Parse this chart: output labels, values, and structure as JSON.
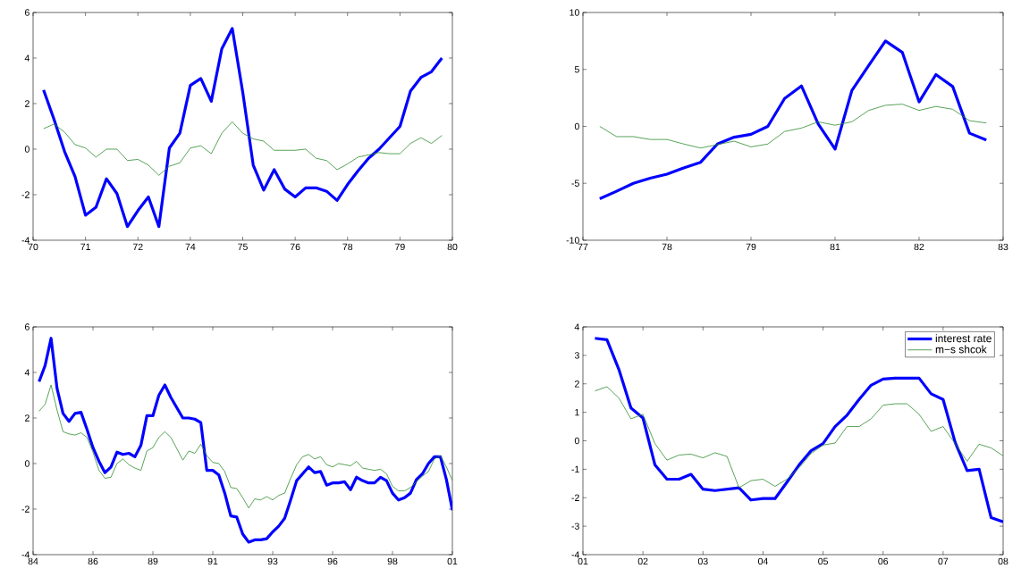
{
  "chart_data": [
    {
      "type": "line",
      "ylim": [
        -4,
        6
      ],
      "categories": [
        "70",
        null,
        null,
        null,
        null,
        "71",
        null,
        null,
        null,
        null,
        "72",
        null,
        null,
        null,
        null,
        "74",
        null,
        null,
        null,
        null,
        "75",
        null,
        null,
        null,
        null,
        "76",
        null,
        null,
        null,
        null,
        "78",
        null,
        null,
        null,
        null,
        "79",
        null,
        null,
        null,
        null,
        "80"
      ],
      "yticks": [
        -4,
        -2,
        0,
        2,
        4,
        6
      ],
      "grid": false,
      "legend": false,
      "marker": "none",
      "line_style": "solid",
      "series": [
        {
          "color": "#0000ff",
          "values": [
            null,
            2.6,
            1.3,
            -0.1,
            -1.2,
            -2.9,
            -2.55,
            -1.3,
            -1.95,
            -3.4,
            -2.7,
            -2.1,
            -3.4,
            0.05,
            0.7,
            2.8,
            3.1,
            2.1,
            4.4,
            5.3,
            2.5,
            -0.7,
            -1.8,
            -0.9,
            -1.75,
            -2.1,
            -1.7,
            -1.7,
            -1.85,
            -2.25,
            -1.55,
            -0.95,
            -0.4,
            0.0,
            0.5,
            1.0,
            2.55,
            3.15,
            3.4,
            4.0,
            null
          ]
        },
        {
          "color": "#2e8b2e",
          "values": [
            null,
            0.9,
            1.1,
            0.75,
            0.2,
            0.05,
            -0.35,
            0.0,
            0.0,
            -0.5,
            -0.45,
            -0.7,
            -1.15,
            -0.75,
            -0.6,
            0.05,
            0.15,
            -0.2,
            0.7,
            1.2,
            0.7,
            0.45,
            0.35,
            -0.05,
            -0.05,
            -0.05,
            0.0,
            -0.4,
            -0.5,
            -0.9,
            -0.65,
            -0.35,
            -0.25,
            -0.15,
            -0.2,
            -0.2,
            0.25,
            0.5,
            0.25,
            0.6,
            null
          ]
        }
      ]
    },
    {
      "type": "line",
      "ylim": [
        -10,
        10
      ],
      "categories": [
        "77",
        null,
        null,
        null,
        null,
        "78",
        null,
        null,
        null,
        null,
        "79",
        null,
        null,
        null,
        null,
        "81",
        null,
        null,
        null,
        null,
        "82",
        null,
        null,
        null,
        null,
        "83"
      ],
      "yticks": [
        -10,
        -5,
        0,
        5,
        10
      ],
      "grid": false,
      "legend": false,
      "marker": "none",
      "line_style": "solid",
      "series": [
        {
          "color": "#0000ff",
          "values": [
            null,
            -6.35,
            -5.7,
            -5.0,
            -4.55,
            -4.2,
            -3.65,
            -3.15,
            -1.55,
            -0.95,
            -0.7,
            0.0,
            2.45,
            3.55,
            0.2,
            -2.0,
            3.15,
            5.35,
            7.5,
            6.5,
            2.15,
            4.55,
            3.5,
            -0.6,
            -1.2,
            null
          ]
        },
        {
          "color": "#2e8b2e",
          "values": [
            null,
            0.0,
            -0.9,
            -0.9,
            -1.15,
            -1.15,
            -1.55,
            -1.9,
            -1.6,
            -1.3,
            -1.8,
            -1.55,
            -0.45,
            -0.15,
            0.4,
            0.1,
            0.4,
            1.4,
            1.85,
            1.95,
            1.4,
            1.75,
            1.5,
            0.5,
            0.3,
            null
          ]
        }
      ]
    },
    {
      "type": "line",
      "ylim": [
        -4,
        6
      ],
      "categories": [
        "84",
        null,
        null,
        null,
        null,
        null,
        null,
        null,
        null,
        null,
        "86",
        null,
        null,
        null,
        null,
        null,
        null,
        null,
        null,
        null,
        "89",
        null,
        null,
        null,
        null,
        null,
        null,
        null,
        null,
        null,
        "91",
        null,
        null,
        null,
        null,
        null,
        null,
        null,
        null,
        null,
        "93",
        null,
        null,
        null,
        null,
        null,
        null,
        null,
        null,
        null,
        "96",
        null,
        null,
        null,
        null,
        null,
        null,
        null,
        null,
        null,
        "98",
        null,
        null,
        null,
        null,
        null,
        null,
        null,
        null,
        null,
        "01"
      ],
      "yticks": [
        -4,
        -2,
        0,
        2,
        4,
        6
      ],
      "grid": false,
      "legend": false,
      "marker": "none",
      "line_style": "solid",
      "series": [
        {
          "color": "#0000ff",
          "values": [
            null,
            3.6,
            4.3,
            5.5,
            3.3,
            2.2,
            1.85,
            2.2,
            2.25,
            1.5,
            0.7,
            0.1,
            -0.4,
            -0.15,
            0.5,
            0.4,
            0.45,
            0.3,
            0.8,
            2.1,
            2.1,
            3.0,
            3.45,
            2.9,
            2.45,
            2.0,
            2.0,
            1.95,
            1.8,
            -0.3,
            -0.3,
            -0.5,
            -1.3,
            -2.3,
            -2.35,
            -3.1,
            -3.45,
            -3.35,
            -3.35,
            -3.3,
            -3.0,
            -2.75,
            -2.4,
            -1.6,
            -0.75,
            -0.45,
            -0.15,
            -0.4,
            -0.35,
            -0.95,
            -0.85,
            -0.85,
            -0.8,
            -1.15,
            -0.6,
            -0.75,
            -0.85,
            -0.85,
            -0.6,
            -0.75,
            -1.3,
            -1.6,
            -1.5,
            -1.3,
            -0.7,
            -0.45,
            0.0,
            0.3,
            0.3,
            -0.7,
            -2.05
          ]
        },
        {
          "color": "#2e8b2e",
          "values": [
            null,
            2.3,
            2.6,
            3.45,
            2.35,
            1.4,
            1.3,
            1.25,
            1.35,
            1.15,
            0.5,
            -0.3,
            -0.65,
            -0.6,
            0.0,
            0.2,
            -0.05,
            -0.2,
            -0.3,
            0.55,
            0.7,
            1.15,
            1.4,
            1.15,
            0.65,
            0.15,
            0.55,
            0.45,
            0.85,
            0.35,
            0.05,
            0.0,
            -0.35,
            -1.05,
            -1.1,
            -1.5,
            -1.95,
            -1.55,
            -1.6,
            -1.45,
            -1.6,
            -1.4,
            -1.3,
            -0.65,
            -0.05,
            0.3,
            0.4,
            0.2,
            0.3,
            -0.05,
            -0.15,
            0.0,
            -0.05,
            -0.1,
            0.1,
            -0.2,
            -0.25,
            -0.3,
            -0.25,
            -0.45,
            -1.0,
            -1.2,
            -1.2,
            -1.05,
            -0.8,
            -0.55,
            -0.35,
            0.2,
            0.35,
            -0.15,
            -0.75
          ]
        }
      ]
    },
    {
      "type": "line",
      "ylim": [
        -4,
        4
      ],
      "categories": [
        "01",
        null,
        null,
        null,
        null,
        "02",
        null,
        null,
        null,
        null,
        "03",
        null,
        null,
        null,
        null,
        "04",
        null,
        null,
        null,
        null,
        "05",
        null,
        null,
        null,
        null,
        "06",
        null,
        null,
        null,
        null,
        "07",
        null,
        null,
        null,
        null,
        "08"
      ],
      "yticks": [
        -4,
        -3,
        -2,
        -1,
        0,
        1,
        2,
        3,
        4
      ],
      "grid": false,
      "legend": "top right",
      "marker": "none",
      "line_style": "solid",
      "series": [
        {
          "name": "interest rate",
          "color": "#0000ff",
          "values": [
            null,
            3.6,
            3.55,
            2.5,
            1.15,
            0.8,
            -0.85,
            -1.35,
            -1.35,
            -1.18,
            -1.7,
            -1.75,
            -1.7,
            -1.65,
            -2.08,
            -2.03,
            -2.03,
            -1.45,
            -0.85,
            -0.35,
            -0.1,
            0.5,
            0.9,
            1.45,
            1.95,
            2.17,
            2.2,
            2.2,
            2.2,
            1.65,
            1.45,
            -0.05,
            -1.05,
            -1.0,
            -2.7,
            -2.85
          ]
        },
        {
          "name": "m−s shcok",
          "color": "#2e8b2e",
          "values": [
            null,
            1.75,
            1.9,
            1.5,
            0.77,
            0.93,
            -0.1,
            -0.68,
            -0.5,
            -0.47,
            -0.6,
            -0.42,
            -0.55,
            -1.65,
            -1.4,
            -1.35,
            -1.6,
            -1.35,
            -0.95,
            -0.45,
            -0.15,
            -0.08,
            0.5,
            0.5,
            0.77,
            1.25,
            1.3,
            1.3,
            0.93,
            0.33,
            0.5,
            -0.1,
            -0.72,
            -0.12,
            -0.25,
            -0.53
          ]
        }
      ]
    }
  ]
}
